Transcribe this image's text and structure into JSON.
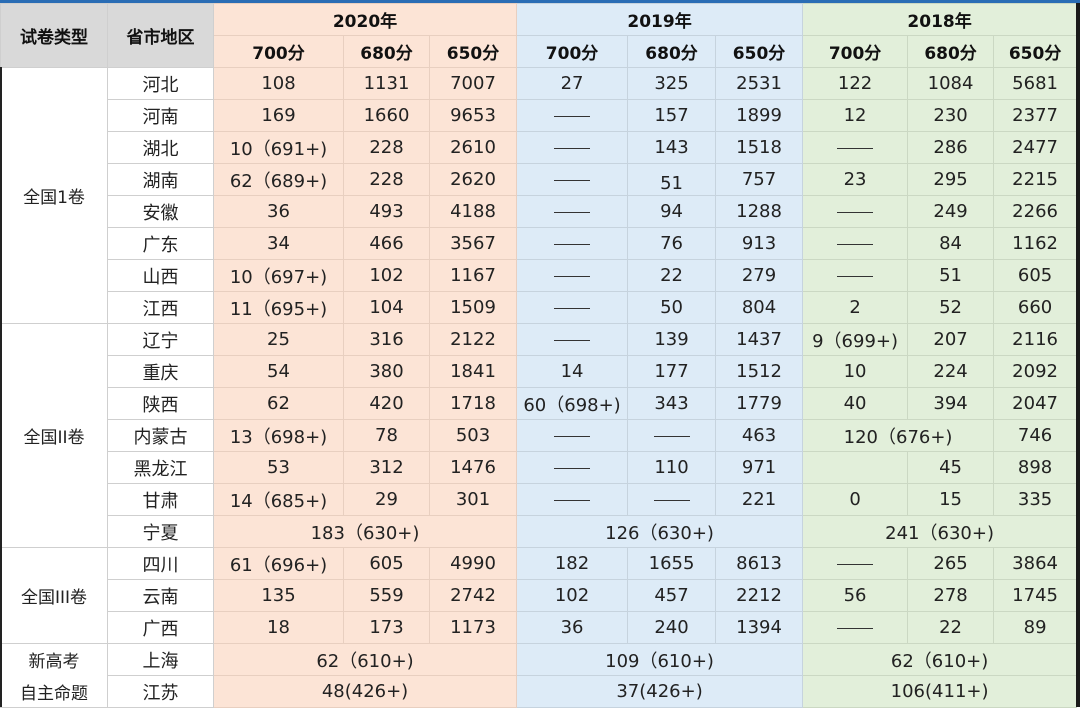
{
  "header": {
    "paper_type": "试卷类型",
    "region": "省市地区",
    "years": [
      "2020年",
      "2019年",
      "2018年"
    ],
    "scores": [
      "700分",
      "680分",
      "650分"
    ]
  },
  "colors": {
    "year_2020_bg": "#fce4d6",
    "year_2019_bg": "#ddebf7",
    "year_2018_bg": "#e2efda",
    "header_gray": "#d9d9d9",
    "top_border": "#2a6db5"
  },
  "dash": "——",
  "groups": [
    {
      "label": "全国1卷"
    },
    {
      "label": "全国II卷"
    },
    {
      "label": "全国III卷"
    },
    {
      "label_line1": "新高考",
      "label_line2": "自主命题"
    }
  ],
  "rows": [
    {
      "province": "河北",
      "y2020": [
        "108",
        "1131",
        "7007"
      ],
      "y2019": [
        "27",
        "325",
        "2531"
      ],
      "y2018": [
        "122",
        "1084",
        "5681"
      ]
    },
    {
      "province": "河南",
      "y2020": [
        "169",
        "1660",
        "9653"
      ],
      "y2019": [
        "——",
        "157",
        "1899"
      ],
      "y2018": [
        "12",
        "230",
        "2377"
      ]
    },
    {
      "province": "湖北",
      "y2020": [
        "10（691+)",
        "228",
        "2610"
      ],
      "y2019": [
        "——",
        "143",
        "1518"
      ],
      "y2018": [
        "——",
        "286",
        "2477"
      ]
    },
    {
      "province": "湖南",
      "y2020": [
        "62（689+)",
        "228",
        "2620"
      ],
      "y2019": [
        "——",
        "51",
        "757"
      ],
      "y2018": [
        "23",
        "295",
        "2215"
      ]
    },
    {
      "province": "安徽",
      "y2020": [
        "36",
        "493",
        "4188"
      ],
      "y2019": [
        "——",
        "94",
        "1288"
      ],
      "y2018": [
        "——",
        "249",
        "2266"
      ]
    },
    {
      "province": "广东",
      "y2020": [
        "34",
        "466",
        "3567"
      ],
      "y2019": [
        "——",
        "76",
        "913"
      ],
      "y2018": [
        "——",
        "84",
        "1162"
      ]
    },
    {
      "province": "山西",
      "y2020": [
        "10（697+)",
        "102",
        "1167"
      ],
      "y2019": [
        "——",
        "22",
        "279"
      ],
      "y2018": [
        "——",
        "51",
        "605"
      ]
    },
    {
      "province": "江西",
      "y2020": [
        "11（695+)",
        "104",
        "1509"
      ],
      "y2019": [
        "——",
        "50",
        "804"
      ],
      "y2018": [
        "2",
        "52",
        "660"
      ]
    },
    {
      "province": "辽宁",
      "y2020": [
        "25",
        "316",
        "2122"
      ],
      "y2019": [
        "——",
        "139",
        "1437"
      ],
      "y2018": [
        "9（699+)",
        "207",
        "2116"
      ]
    },
    {
      "province": "重庆",
      "y2020": [
        "54",
        "380",
        "1841"
      ],
      "y2019": [
        "14",
        "177",
        "1512"
      ],
      "y2018": [
        "10",
        "224",
        "2092"
      ]
    },
    {
      "province": "陕西",
      "y2020": [
        "62",
        "420",
        "1718"
      ],
      "y2019": [
        "60（698+)",
        "343",
        "1779"
      ],
      "y2018": [
        "40",
        "394",
        "2047"
      ]
    },
    {
      "province": "内蒙古",
      "y2020": [
        "13（698+)",
        "78",
        "503"
      ],
      "y2019": [
        "——",
        "——",
        "463"
      ],
      "y2018_merged_700_680": "120（676+)",
      "y2018_650": "746"
    },
    {
      "province": "黑龙江",
      "y2020": [
        "53",
        "312",
        "1476"
      ],
      "y2019": [
        "——",
        "110",
        "971"
      ],
      "y2018": [
        "",
        "45",
        "898"
      ]
    },
    {
      "province": "甘肃",
      "y2020": [
        "14（685+)",
        "29",
        "301"
      ],
      "y2019": [
        "——",
        "——",
        "221"
      ],
      "y2018": [
        "0",
        "15",
        "335"
      ]
    },
    {
      "province": "宁夏",
      "y2020_merged": "183（630+)",
      "y2019_merged": "126（630+)",
      "y2018_merged": "241（630+)"
    },
    {
      "province": "四川",
      "y2020": [
        "61（696+)",
        "605",
        "4990"
      ],
      "y2019": [
        "182",
        "1655",
        "8613"
      ],
      "y2018": [
        "——",
        "265",
        "3864"
      ]
    },
    {
      "province": "云南",
      "y2020": [
        "135",
        "559",
        "2742"
      ],
      "y2019": [
        "102",
        "457",
        "2212"
      ],
      "y2018": [
        "56",
        "278",
        "1745"
      ]
    },
    {
      "province": "广西",
      "y2020": [
        "18",
        "173",
        "1173"
      ],
      "y2019": [
        "36",
        "240",
        "1394"
      ],
      "y2018": [
        "——",
        "22",
        "89"
      ]
    },
    {
      "province": "上海",
      "y2020_merged": "62（610+)",
      "y2019_merged": "109（610+)",
      "y2018_merged": "62（610+)"
    },
    {
      "province": "江苏",
      "y2020_merged": "48(426+)",
      "y2019_merged": "37(426+)",
      "y2018_merged": "106(411+)"
    }
  ]
}
